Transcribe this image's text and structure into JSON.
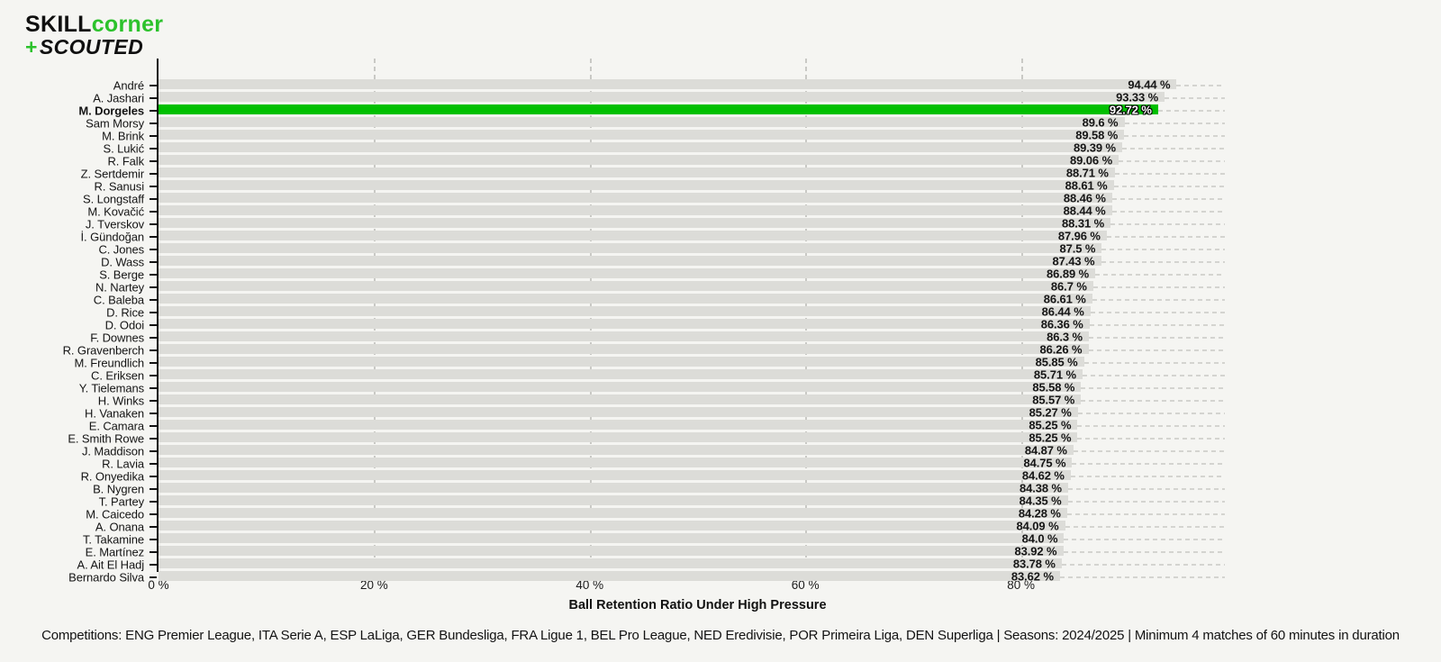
{
  "logo": {
    "skill": "SKILL",
    "corner": "corner",
    "plus": "+",
    "scouted": "SCOUTED"
  },
  "colors": {
    "background": "#f5f5f2",
    "bar": "#dcdcd8",
    "highlight_bar": "#00c000",
    "logo_green": "#2cc22c",
    "axis": "#111111",
    "gridline": "#c9c9c5"
  },
  "chart_data": {
    "type": "bar",
    "orientation": "horizontal",
    "title": "",
    "xlabel": "Ball Retention Ratio Under High Pressure",
    "ylabel": "",
    "xlim": [
      0,
      100
    ],
    "grid": "dashed-vertical",
    "legend": "none",
    "highlight_player": "M. Dorgeles",
    "highlight_index": 2,
    "x_ticks": [
      {
        "value": 0,
        "label": "0 %"
      },
      {
        "value": 20,
        "label": "20 %"
      },
      {
        "value": 40,
        "label": "40 %"
      },
      {
        "value": 60,
        "label": "60 %"
      },
      {
        "value": 80,
        "label": "80 %"
      }
    ],
    "players": [
      {
        "name": "André",
        "value": 94.44,
        "label": "94.44 %"
      },
      {
        "name": "A. Jashari",
        "value": 93.33,
        "label": "93.33 %"
      },
      {
        "name": "M. Dorgeles",
        "value": 92.72,
        "label": "92.72 %"
      },
      {
        "name": "Sam Morsy",
        "value": 89.6,
        "label": "89.6 %"
      },
      {
        "name": "M. Brink",
        "value": 89.58,
        "label": "89.58 %"
      },
      {
        "name": "S. Lukić",
        "value": 89.39,
        "label": "89.39 %"
      },
      {
        "name": "R. Falk",
        "value": 89.06,
        "label": "89.06 %"
      },
      {
        "name": "Z. Sertdemir",
        "value": 88.71,
        "label": "88.71 %"
      },
      {
        "name": "R. Sanusi",
        "value": 88.61,
        "label": "88.61 %"
      },
      {
        "name": "S. Longstaff",
        "value": 88.46,
        "label": "88.46 %"
      },
      {
        "name": "M. Kovačić",
        "value": 88.44,
        "label": "88.44 %"
      },
      {
        "name": "J. Tverskov",
        "value": 88.31,
        "label": "88.31 %"
      },
      {
        "name": "İ. Gündoğan",
        "value": 87.96,
        "label": "87.96 %"
      },
      {
        "name": "C. Jones",
        "value": 87.5,
        "label": "87.5 %"
      },
      {
        "name": "D. Wass",
        "value": 87.43,
        "label": "87.43 %"
      },
      {
        "name": "S. Berge",
        "value": 86.89,
        "label": "86.89 %"
      },
      {
        "name": "N. Nartey",
        "value": 86.7,
        "label": "86.7 %"
      },
      {
        "name": "C. Baleba",
        "value": 86.61,
        "label": "86.61 %"
      },
      {
        "name": "D. Rice",
        "value": 86.44,
        "label": "86.44 %"
      },
      {
        "name": "D. Odoi",
        "value": 86.36,
        "label": "86.36 %"
      },
      {
        "name": "F. Downes",
        "value": 86.3,
        "label": "86.3 %"
      },
      {
        "name": "R. Gravenberch",
        "value": 86.26,
        "label": "86.26 %"
      },
      {
        "name": "M. Freundlich",
        "value": 85.85,
        "label": "85.85 %"
      },
      {
        "name": "C. Eriksen",
        "value": 85.71,
        "label": "85.71 %"
      },
      {
        "name": "Y. Tielemans",
        "value": 85.58,
        "label": "85.58 %"
      },
      {
        "name": "H. Winks",
        "value": 85.57,
        "label": "85.57 %"
      },
      {
        "name": "H. Vanaken",
        "value": 85.27,
        "label": "85.27 %"
      },
      {
        "name": "E. Camara",
        "value": 85.25,
        "label": "85.25 %"
      },
      {
        "name": "E. Smith Rowe",
        "value": 85.25,
        "label": "85.25 %"
      },
      {
        "name": "J. Maddison",
        "value": 84.87,
        "label": "84.87 %"
      },
      {
        "name": "R. Lavia",
        "value": 84.75,
        "label": "84.75 %"
      },
      {
        "name": "R. Onyedika",
        "value": 84.62,
        "label": "84.62 %"
      },
      {
        "name": "B. Nygren",
        "value": 84.38,
        "label": "84.38 %"
      },
      {
        "name": "T. Partey",
        "value": 84.35,
        "label": "84.35 %"
      },
      {
        "name": "M. Caicedo",
        "value": 84.28,
        "label": "84.28 %"
      },
      {
        "name": "A. Onana",
        "value": 84.09,
        "label": "84.09 %"
      },
      {
        "name": "T. Takamine",
        "value": 84.0,
        "label": "84.0 %"
      },
      {
        "name": "E. Martínez",
        "value": 83.92,
        "label": "83.92 %"
      },
      {
        "name": "A. Ait El Hadj",
        "value": 83.78,
        "label": "83.78 %"
      },
      {
        "name": "Bernardo Silva",
        "value": 83.62,
        "label": "83.62 %"
      }
    ]
  },
  "footer": "Competitions: ENG Premier League, ITA Serie A, ESP LaLiga, GER Bundesliga, FRA Ligue 1, BEL Pro League, NED Eredivisie, POR Primeira Liga, DEN Superliga | Seasons: 2024/2025 | Minimum 4 matches of 60 minutes in duration"
}
